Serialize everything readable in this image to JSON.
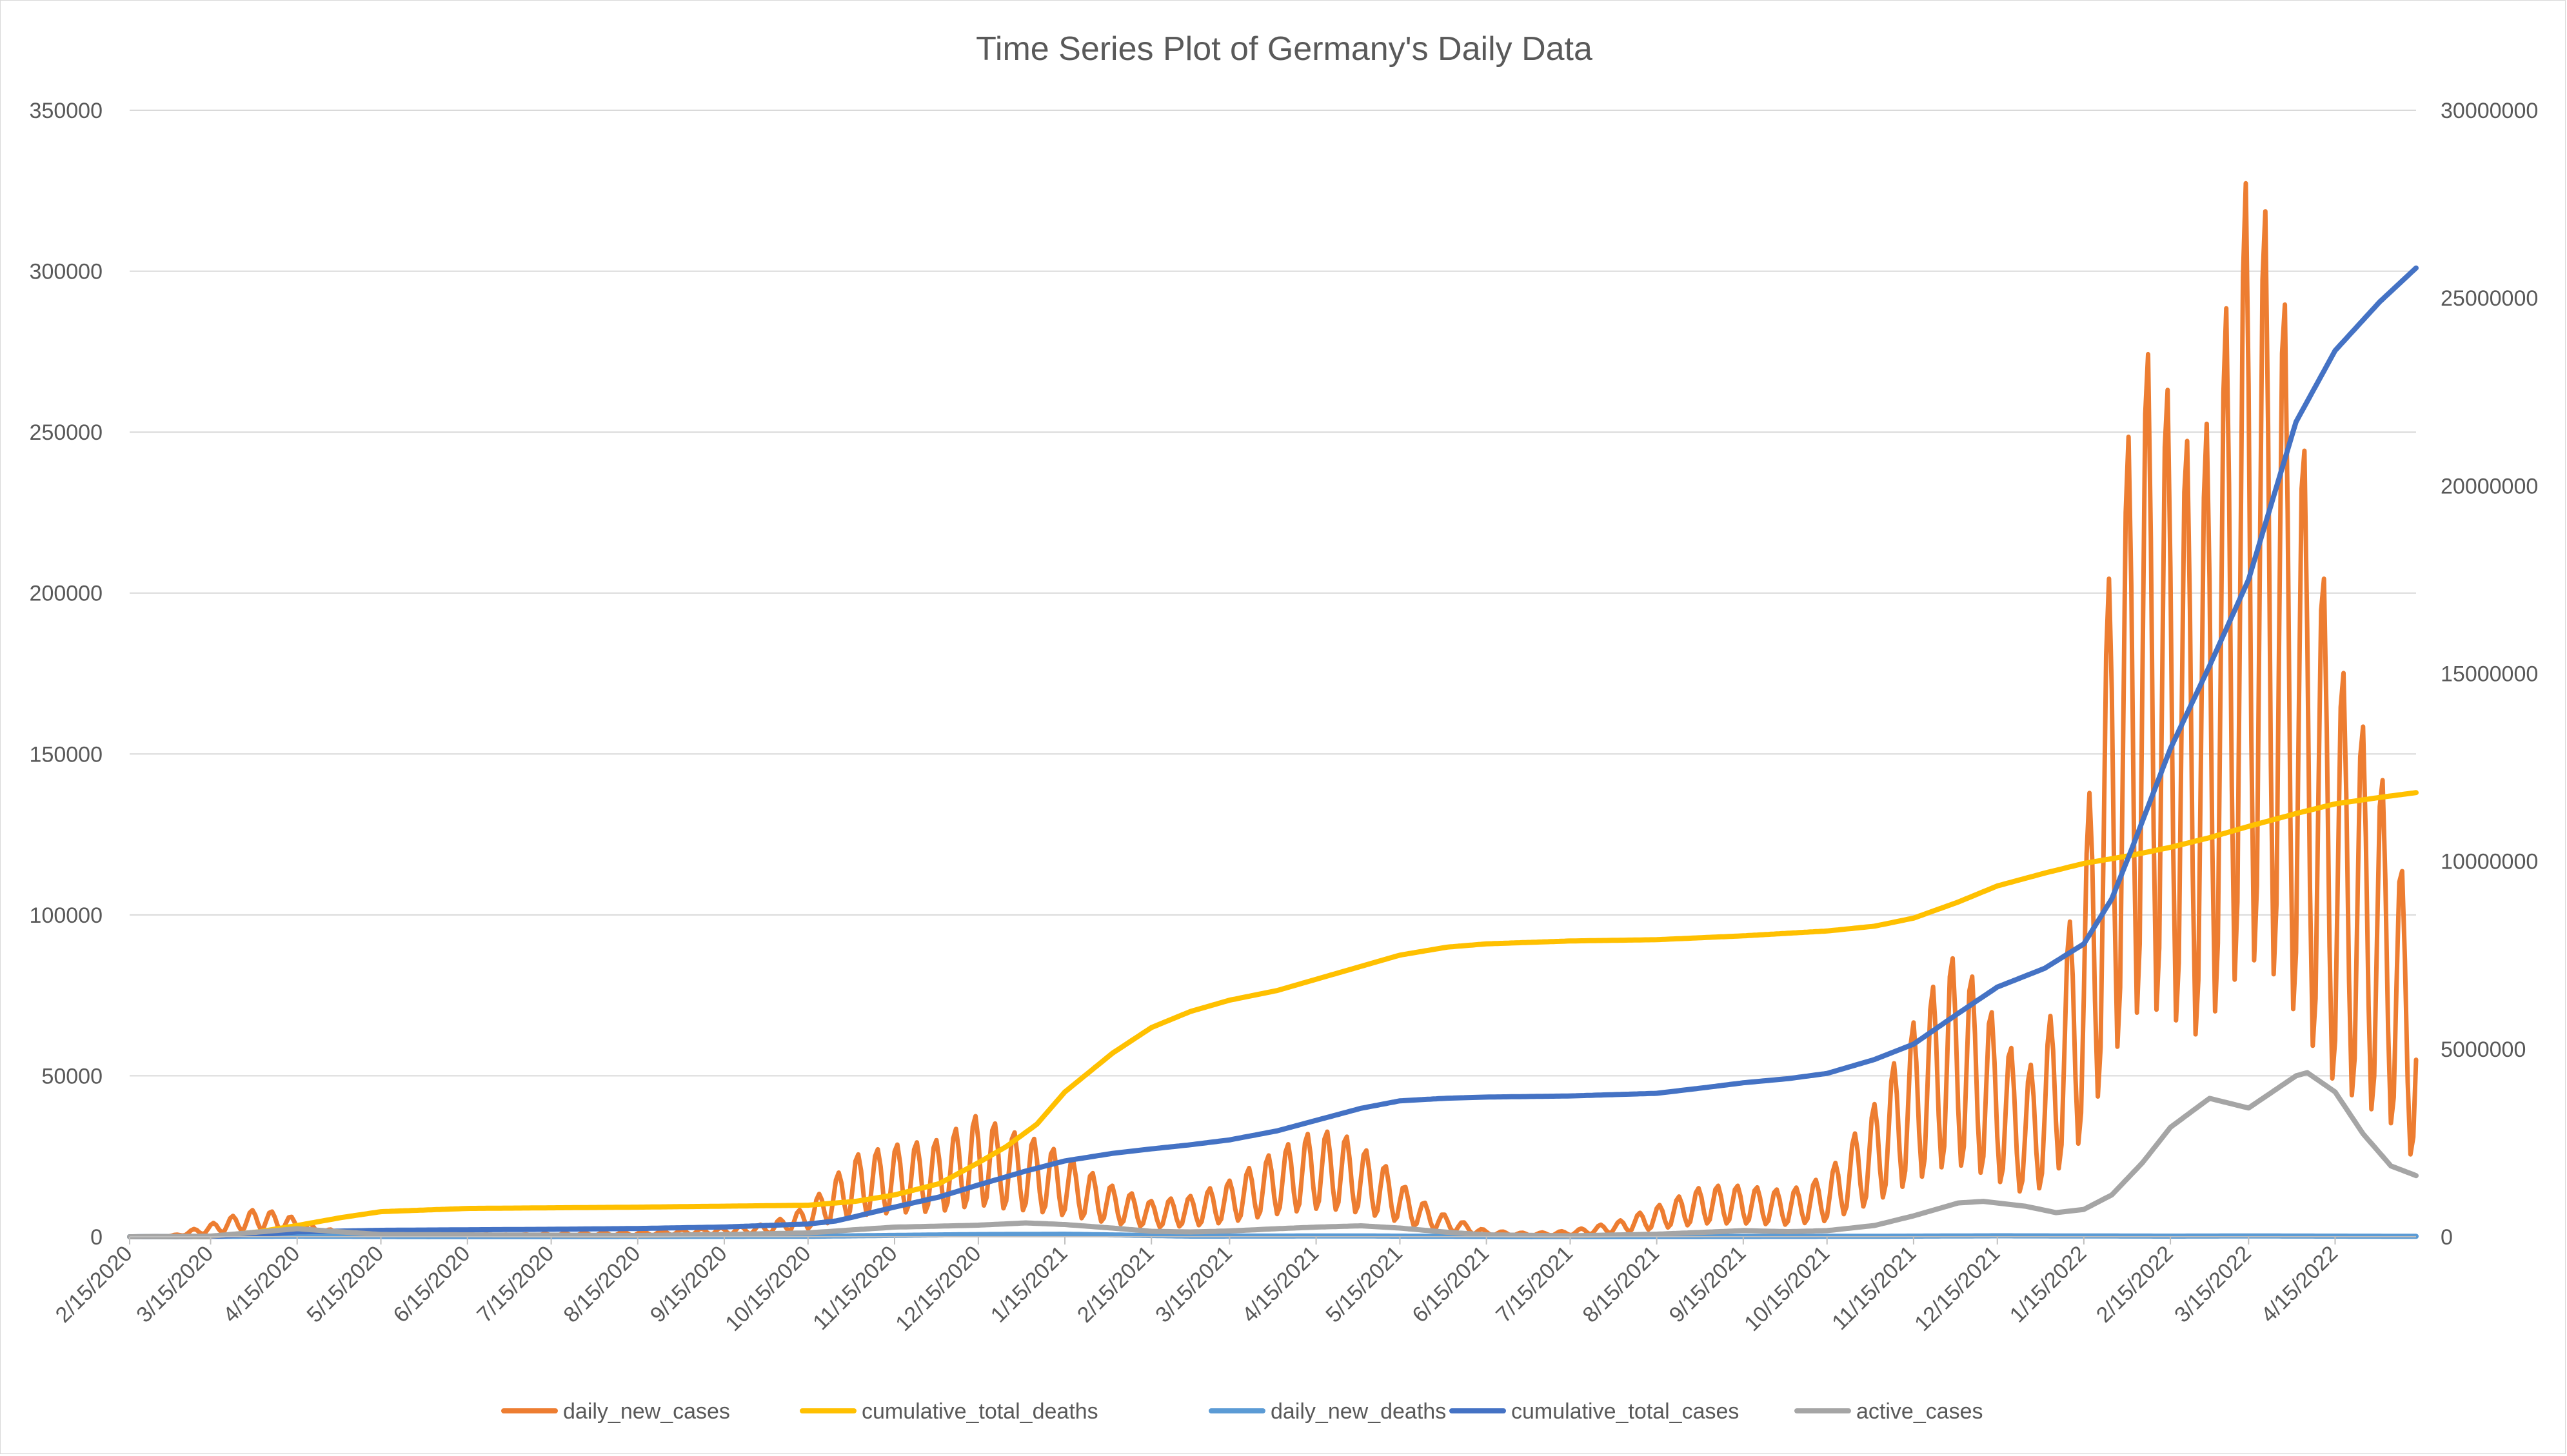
{
  "chart_data": {
    "type": "line",
    "title": "Time Series Plot of Germany's Daily Data",
    "xlabel": "",
    "ylabel": "",
    "y2label": "",
    "x_start": "2/15/2020",
    "x_end": "5/14/2022",
    "x_ticks": [
      "2/15/2020",
      "3/15/2020",
      "4/15/2020",
      "5/15/2020",
      "6/15/2020",
      "7/15/2020",
      "8/15/2020",
      "9/15/2020",
      "10/15/2020",
      "11/15/2020",
      "12/15/2020",
      "1/15/2021",
      "2/15/2021",
      "3/15/2021",
      "4/15/2021",
      "5/15/2021",
      "6/15/2021",
      "7/15/2021",
      "8/15/2021",
      "9/15/2021",
      "10/15/2021",
      "11/15/2021",
      "12/15/2021",
      "1/15/2022",
      "2/15/2022",
      "3/15/2022",
      "4/15/2022"
    ],
    "ylim": [
      0,
      350000
    ],
    "y_ticks": [
      "0",
      "50000",
      "100000",
      "150000",
      "200000",
      "250000",
      "300000",
      "350000"
    ],
    "y2lim": [
      0,
      30000000
    ],
    "y2_ticks": [
      "0",
      "5000000",
      "10000000",
      "15000000",
      "20000000",
      "25000000",
      "30000000"
    ],
    "grid": true,
    "legend": "bottom",
    "series": [
      {
        "name": "daily_new_cases",
        "axis": "left",
        "color": "#ED7D31",
        "pattern": "weekly",
        "amplitude": 0.6,
        "points": [
          [
            "2/15/2020",
            0
          ],
          [
            "3/1/2020",
            200
          ],
          [
            "3/15/2020",
            2500
          ],
          [
            "3/25/2020",
            4500
          ],
          [
            "4/1/2020",
            5500
          ],
          [
            "4/10/2020",
            4500
          ],
          [
            "4/25/2020",
            1500
          ],
          [
            "5/15/2020",
            600
          ],
          [
            "7/1/2020",
            400
          ],
          [
            "8/15/2020",
            1000
          ],
          [
            "9/15/2020",
            1800
          ],
          [
            "10/1/2020",
            2500
          ],
          [
            "10/15/2020",
            6000
          ],
          [
            "10/25/2020",
            12000
          ],
          [
            "11/1/2020",
            16000
          ],
          [
            "11/15/2020",
            18000
          ],
          [
            "12/1/2020",
            19000
          ],
          [
            "12/15/2020",
            24000
          ],
          [
            "12/25/2020",
            21000
          ],
          [
            "1/5/2021",
            19000
          ],
          [
            "1/15/2021",
            16000
          ],
          [
            "2/1/2021",
            10000
          ],
          [
            "2/15/2021",
            7000
          ],
          [
            "3/1/2021",
            8000
          ],
          [
            "3/15/2021",
            11000
          ],
          [
            "4/1/2021",
            17000
          ],
          [
            "4/15/2021",
            21000
          ],
          [
            "4/25/2021",
            20000
          ],
          [
            "5/8/2021",
            15000
          ],
          [
            "5/20/2021",
            8000
          ],
          [
            "6/1/2021",
            4000
          ],
          [
            "6/15/2021",
            1200
          ],
          [
            "7/1/2021",
            700
          ],
          [
            "7/15/2021",
            1200
          ],
          [
            "8/1/2021",
            3000
          ],
          [
            "8/15/2021",
            6000
          ],
          [
            "9/1/2021",
            10000
          ],
          [
            "9/15/2021",
            10000
          ],
          [
            "10/1/2021",
            9000
          ],
          [
            "10/15/2021",
            12000
          ],
          [
            "11/1/2021",
            26000
          ],
          [
            "11/15/2021",
            42000
          ],
          [
            "11/28/2021",
            55000
          ],
          [
            "12/5/2021",
            52000
          ],
          [
            "12/15/2021",
            42000
          ],
          [
            "12/25/2021",
            32000
          ],
          [
            "1/1/2022",
            38000
          ],
          [
            "1/15/2022",
            75000
          ],
          [
            "1/25/2022",
            135000
          ],
          [
            "2/5/2022",
            175000
          ],
          [
            "2/15/2022",
            165000
          ],
          [
            "2/25/2022",
            150000
          ],
          [
            "3/5/2022",
            175000
          ],
          [
            "3/15/2022",
            210000
          ],
          [
            "3/25/2022",
            195000
          ],
          [
            "4/5/2022",
            150000
          ],
          [
            "4/15/2022",
            115000
          ],
          [
            "4/25/2022",
            100000
          ],
          [
            "5/5/2022",
            85000
          ],
          [
            "5/14/2022",
            55000
          ]
        ]
      },
      {
        "name": "cumulative_total_deaths",
        "axis": "left",
        "color": "#FFC000",
        "points": [
          [
            "2/15/2020",
            0
          ],
          [
            "3/15/2020",
            50
          ],
          [
            "4/1/2020",
            1500
          ],
          [
            "4/15/2020",
            3500
          ],
          [
            "5/1/2020",
            6000
          ],
          [
            "5/15/2020",
            7800
          ],
          [
            "6/15/2020",
            8800
          ],
          [
            "8/15/2020",
            9200
          ],
          [
            "10/15/2020",
            9800
          ],
          [
            "11/1/2020",
            11000
          ],
          [
            "11/15/2020",
            13000
          ],
          [
            "12/1/2020",
            16500
          ],
          [
            "12/15/2020",
            23000
          ],
          [
            "12/25/2020",
            28000
          ],
          [
            "1/5/2021",
            35000
          ],
          [
            "1/15/2021",
            45000
          ],
          [
            "2/1/2021",
            57000
          ],
          [
            "2/15/2021",
            65000
          ],
          [
            "3/1/2021",
            70000
          ],
          [
            "3/15/2021",
            73500
          ],
          [
            "4/1/2021",
            76500
          ],
          [
            "4/15/2021",
            80000
          ],
          [
            "5/1/2021",
            84000
          ],
          [
            "5/15/2021",
            87500
          ],
          [
            "6/1/2021",
            90000
          ],
          [
            "6/15/2021",
            91000
          ],
          [
            "7/15/2021",
            91900
          ],
          [
            "8/15/2021",
            92300
          ],
          [
            "9/15/2021",
            93500
          ],
          [
            "10/15/2021",
            95000
          ],
          [
            "11/1/2021",
            96500
          ],
          [
            "11/15/2021",
            99000
          ],
          [
            "12/1/2021",
            104000
          ],
          [
            "12/15/2021",
            109000
          ],
          [
            "1/1/2022",
            113000
          ],
          [
            "1/15/2022",
            116000
          ],
          [
            "2/1/2022",
            118500
          ],
          [
            "2/15/2022",
            121000
          ],
          [
            "3/1/2022",
            124000
          ],
          [
            "3/15/2022",
            127500
          ],
          [
            "4/1/2022",
            131500
          ],
          [
            "4/15/2022",
            134500
          ],
          [
            "5/1/2022",
            136500
          ],
          [
            "5/14/2022",
            138000
          ]
        ]
      },
      {
        "name": "daily_new_deaths",
        "axis": "left",
        "color": "#5B9BD5",
        "points": [
          [
            "2/15/2020",
            0
          ],
          [
            "4/15/2020",
            200
          ],
          [
            "6/1/2020",
            30
          ],
          [
            "10/15/2020",
            150
          ],
          [
            "12/15/2020",
            700
          ],
          [
            "1/15/2021",
            800
          ],
          [
            "3/1/2021",
            200
          ],
          [
            "5/1/2021",
            250
          ],
          [
            "7/1/2021",
            30
          ],
          [
            "11/1/2021",
            150
          ],
          [
            "12/15/2021",
            300
          ],
          [
            "2/15/2022",
            200
          ],
          [
            "3/15/2022",
            250
          ],
          [
            "5/14/2022",
            150
          ]
        ]
      },
      {
        "name": "cumulative_total_cases",
        "axis": "right",
        "color": "#4472C4",
        "points": [
          [
            "2/15/2020",
            0
          ],
          [
            "3/15/2020",
            10000
          ],
          [
            "4/1/2020",
            60000
          ],
          [
            "4/15/2020",
            130000
          ],
          [
            "5/15/2020",
            172000
          ],
          [
            "6/15/2020",
            186000
          ],
          [
            "7/15/2020",
            199000
          ],
          [
            "8/15/2020",
            220000
          ],
          [
            "9/15/2020",
            260000
          ],
          [
            "10/15/2020",
            340000
          ],
          [
            "10/25/2020",
            420000
          ],
          [
            "11/1/2020",
            540000
          ],
          [
            "11/15/2020",
            790000
          ],
          [
            "12/1/2020",
            1060000
          ],
          [
            "12/15/2020",
            1380000
          ],
          [
            "1/1/2021",
            1750000
          ],
          [
            "1/15/2021",
            2020000
          ],
          [
            "2/1/2021",
            2220000
          ],
          [
            "2/15/2021",
            2340000
          ],
          [
            "3/1/2021",
            2450000
          ],
          [
            "3/15/2021",
            2580000
          ],
          [
            "4/1/2021",
            2820000
          ],
          [
            "4/15/2021",
            3100000
          ],
          [
            "5/1/2021",
            3420000
          ],
          [
            "5/15/2021",
            3620000
          ],
          [
            "6/1/2021",
            3690000
          ],
          [
            "6/15/2021",
            3720000
          ],
          [
            "7/15/2021",
            3750000
          ],
          [
            "8/15/2021",
            3820000
          ],
          [
            "9/1/2021",
            3970000
          ],
          [
            "9/15/2021",
            4100000
          ],
          [
            "10/1/2021",
            4210000
          ],
          [
            "10/15/2021",
            4350000
          ],
          [
            "11/1/2021",
            4720000
          ],
          [
            "11/15/2021",
            5130000
          ],
          [
            "12/1/2021",
            5950000
          ],
          [
            "12/15/2021",
            6650000
          ],
          [
            "1/1/2022",
            7150000
          ],
          [
            "1/15/2022",
            7800000
          ],
          [
            "1/25/2022",
            9000000
          ],
          [
            "2/1/2022",
            10300000
          ],
          [
            "2/15/2022",
            13000000
          ],
          [
            "3/1/2022",
            15200000
          ],
          [
            "3/15/2022",
            17500000
          ],
          [
            "4/1/2022",
            21700000
          ],
          [
            "4/15/2022",
            23600000
          ],
          [
            "5/1/2022",
            24900000
          ],
          [
            "5/14/2022",
            25800000
          ]
        ]
      },
      {
        "name": "active_cases",
        "axis": "left",
        "color": "#A5A5A5",
        "points": [
          [
            "2/15/2020",
            0
          ],
          [
            "3/15/2020",
            200
          ],
          [
            "4/15/2020",
            2500
          ],
          [
            "5/1/2020",
            1500
          ],
          [
            "5/15/2020",
            700
          ],
          [
            "8/15/2020",
            400
          ],
          [
            "9/15/2020",
            700
          ],
          [
            "10/15/2020",
            1200
          ],
          [
            "11/1/2020",
            2200
          ],
          [
            "11/15/2020",
            3000
          ],
          [
            "12/1/2020",
            3300
          ],
          [
            "12/15/2020",
            3600
          ],
          [
            "1/1/2021",
            4300
          ],
          [
            "1/15/2021",
            3800
          ],
          [
            "2/1/2021",
            2700
          ],
          [
            "2/15/2021",
            1700
          ],
          [
            "3/1/2021",
            1500
          ],
          [
            "3/15/2021",
            1800
          ],
          [
            "4/1/2021",
            2500
          ],
          [
            "4/15/2021",
            3000
          ],
          [
            "5/1/2021",
            3400
          ],
          [
            "5/15/2021",
            2700
          ],
          [
            "6/1/2021",
            1400
          ],
          [
            "6/15/2021",
            600
          ],
          [
            "7/15/2021",
            300
          ],
          [
            "8/15/2021",
            800
          ],
          [
            "9/15/2021",
            1900
          ],
          [
            "10/1/2021",
            1600
          ],
          [
            "10/15/2021",
            1900
          ],
          [
            "11/1/2021",
            3500
          ],
          [
            "11/15/2021",
            6500
          ],
          [
            "12/1/2021",
            10500
          ],
          [
            "12/10/2021",
            11000
          ],
          [
            "12/25/2021",
            9500
          ],
          [
            "1/5/2022",
            7500
          ],
          [
            "1/15/2022",
            8500
          ],
          [
            "1/25/2022",
            13000
          ],
          [
            "2/5/2022",
            23000
          ],
          [
            "2/15/2022",
            34000
          ],
          [
            "3/1/2022",
            43000
          ],
          [
            "3/15/2022",
            40000
          ],
          [
            "4/1/2022",
            50000
          ],
          [
            "4/5/2022",
            51000
          ],
          [
            "4/15/2022",
            45000
          ],
          [
            "4/25/2022",
            32000
          ],
          [
            "5/5/2022",
            22000
          ],
          [
            "5/14/2022",
            19000
          ]
        ]
      }
    ]
  }
}
